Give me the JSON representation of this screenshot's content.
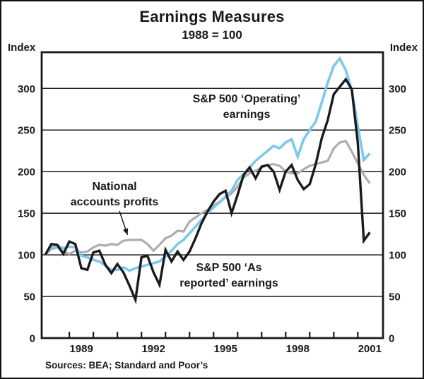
{
  "chart": {
    "title": "Earnings Measures",
    "subtitle": "1988 = 100",
    "y_axis_label_left": "Index",
    "y_axis_label_right": "Index",
    "source": "Sources: BEA; Standard and Poor’s"
  },
  "chart_data": {
    "type": "line",
    "title": "Earnings Measures",
    "subtitle": "1988 = 100",
    "xlabel": "",
    "ylabel": "Index",
    "grid": "horizontal",
    "legend_position": "in-plot annotations",
    "x_unit": "year, quarterly observations",
    "x_start": 1988.0,
    "x_step": 0.25,
    "x_end": 2001.5,
    "xlim": [
      1987.85,
      2002.05
    ],
    "ylim": [
      0,
      343
    ],
    "y_gridlines": [
      50,
      100,
      150,
      200,
      250,
      300
    ],
    "y_tick_labels": [
      "0",
      "50",
      "100",
      "150",
      "200",
      "250",
      "300"
    ],
    "y_tick_values": [
      0,
      50,
      100,
      150,
      200,
      250,
      300
    ],
    "x_tick_years": [
      1989,
      1990,
      1991,
      1992,
      1993,
      1994,
      1995,
      1996,
      1997,
      1998,
      1999,
      2000,
      2001
    ],
    "x_label_years": [
      "1989",
      "1992",
      "1995",
      "1998",
      "2001"
    ],
    "x_label_positions": [
      1989.5,
      1992.5,
      1995.5,
      1998.5,
      2001.5
    ],
    "frame_color": "#1a1a1a",
    "series": [
      {
        "name": "National accounts profits",
        "color": "#adadad",
        "stroke_width": 3.2,
        "values": [
          100,
          107,
          109,
          104,
          101,
          105,
          103,
          104,
          109,
          112,
          111,
          113,
          112,
          117,
          118,
          118,
          118,
          113,
          105,
          112,
          120,
          123,
          129,
          128,
          140,
          145,
          150,
          154,
          159,
          164,
          169,
          174,
          182,
          193,
          198,
          201,
          205,
          208,
          209,
          207,
          200,
          198,
          198,
          203,
          207,
          209,
          211,
          213,
          228,
          235,
          237,
          224,
          210,
          196,
          186
        ]
      },
      {
        "name": "S&P 500 ‘Operating’ earnings",
        "color": "#7dc9ec",
        "stroke_width": 3.6,
        "values": [
          100,
          109,
          111,
          108,
          110,
          109,
          99,
          97,
          94,
          92,
          87,
          82,
          82,
          85,
          81,
          84,
          86,
          88,
          90,
          92,
          98,
          105,
          113,
          118,
          126,
          134,
          142,
          150,
          157,
          163,
          170,
          177,
          190,
          197,
          205,
          213,
          219,
          225,
          231,
          228,
          235,
          239,
          218,
          239,
          250,
          260,
          283,
          307,
          327,
          336,
          322,
          298,
          255,
          214,
          222
        ]
      },
      {
        "name": "S&P 500 ‘As reported’ earnings",
        "color": "#1a1a1a",
        "stroke_width": 3.4,
        "values": [
          100,
          113,
          112,
          101,
          116,
          113,
          84,
          82,
          103,
          105,
          88,
          78,
          89,
          79,
          63,
          46,
          97,
          99,
          79,
          64,
          106,
          92,
          104,
          94,
          104,
          120,
          138,
          152,
          164,
          173,
          177,
          150,
          172,
          196,
          205,
          192,
          206,
          208,
          200,
          178,
          200,
          208,
          190,
          179,
          185,
          209,
          240,
          262,
          293,
          302,
          311,
          299,
          235,
          117,
          127
        ]
      }
    ],
    "annotations": [
      {
        "id": "operating",
        "text": "S&P 500 ‘Operating’\nearnings"
      },
      {
        "id": "national",
        "text": "National\naccounts profits",
        "arrow": true
      },
      {
        "id": "as_reported",
        "text": "S&P 500 ‘As\nreported’ earnings"
      }
    ]
  }
}
